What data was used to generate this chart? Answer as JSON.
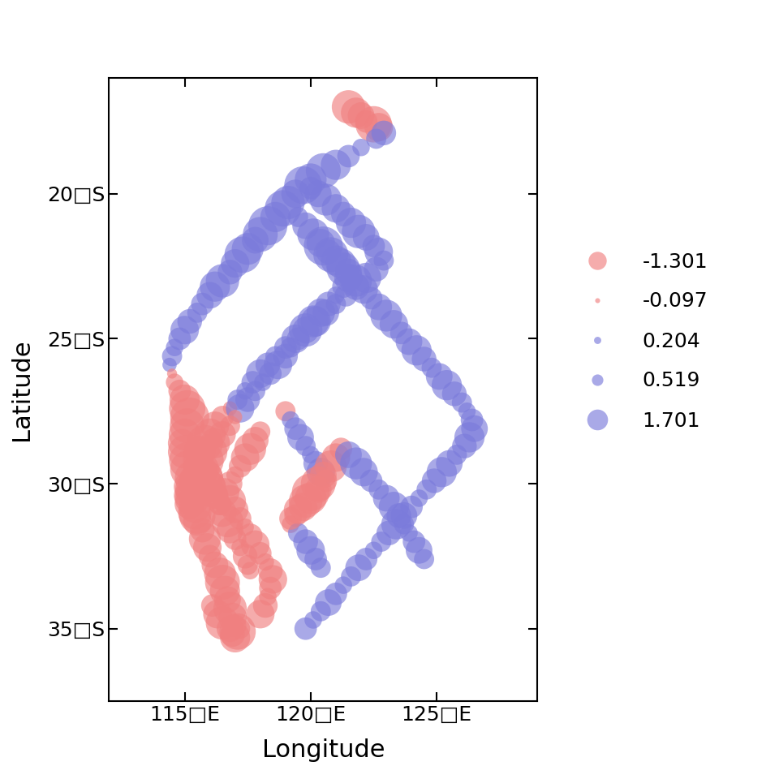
{
  "title": "",
  "xlabel": "Longitude",
  "ylabel": "Latitude",
  "xlim": [
    112.0,
    129.0
  ],
  "ylim": [
    -37.5,
    -16.0
  ],
  "xticks": [
    115,
    120,
    125
  ],
  "yticks": [
    -20,
    -25,
    -30,
    -35
  ],
  "xtick_labels": [
    "115□E",
    "120□E",
    "125□E"
  ],
  "ytick_labels": [
    "20□S",
    "25□S",
    "30□S",
    "35□S"
  ],
  "legend_values": [
    -1.301,
    -0.097,
    0.204,
    0.519,
    1.701
  ],
  "neg_color": "#F08080",
  "pos_color": "#7B7BDB",
  "alpha": 0.65,
  "size_scale": 800,
  "points": [
    [
      121.5,
      -17.0,
      -1.1
    ],
    [
      121.8,
      -17.2,
      -0.9
    ],
    [
      122.0,
      -17.3,
      -0.7
    ],
    [
      122.2,
      -17.5,
      -0.5
    ],
    [
      122.5,
      -17.6,
      -1.3
    ],
    [
      122.7,
      -17.7,
      -0.8
    ],
    [
      122.9,
      -17.9,
      0.6
    ],
    [
      122.6,
      -18.1,
      0.4
    ],
    [
      122.0,
      -18.4,
      0.3
    ],
    [
      121.5,
      -18.7,
      0.5
    ],
    [
      121.0,
      -19.0,
      0.9
    ],
    [
      120.5,
      -19.2,
      1.2
    ],
    [
      120.0,
      -19.5,
      1.0
    ],
    [
      119.7,
      -19.7,
      1.4
    ],
    [
      119.4,
      -20.0,
      0.8
    ],
    [
      119.1,
      -20.3,
      1.1
    ],
    [
      118.9,
      -20.5,
      1.3
    ],
    [
      118.6,
      -20.8,
      0.9
    ],
    [
      118.3,
      -21.1,
      1.5
    ],
    [
      118.0,
      -21.4,
      1.2
    ],
    [
      117.8,
      -21.6,
      0.7
    ],
    [
      117.5,
      -21.9,
      1.0
    ],
    [
      117.3,
      -22.1,
      1.3
    ],
    [
      117.0,
      -22.4,
      0.8
    ],
    [
      116.8,
      -22.7,
      0.6
    ],
    [
      116.5,
      -23.0,
      1.1
    ],
    [
      116.2,
      -23.2,
      0.9
    ],
    [
      116.0,
      -23.5,
      0.7
    ],
    [
      115.7,
      -23.8,
      0.5
    ],
    [
      115.5,
      -24.1,
      0.4
    ],
    [
      115.2,
      -24.4,
      0.6
    ],
    [
      115.0,
      -24.7,
      0.8
    ],
    [
      114.8,
      -25.0,
      0.5
    ],
    [
      114.6,
      -25.3,
      0.3
    ],
    [
      114.5,
      -25.6,
      0.4
    ],
    [
      114.4,
      -25.9,
      0.2
    ],
    [
      114.5,
      -26.2,
      -0.1
    ],
    [
      114.6,
      -26.5,
      -0.3
    ],
    [
      114.8,
      -26.8,
      -0.5
    ],
    [
      115.0,
      -27.1,
      -0.9
    ],
    [
      115.1,
      -27.4,
      -1.3
    ],
    [
      115.2,
      -27.7,
      -1.5
    ],
    [
      115.1,
      -28.0,
      -1.2
    ],
    [
      115.0,
      -28.3,
      -1.0
    ],
    [
      114.9,
      -28.6,
      -0.8
    ],
    [
      115.0,
      -28.9,
      -1.1
    ],
    [
      115.1,
      -29.2,
      -1.3
    ],
    [
      115.2,
      -29.5,
      -1.5
    ],
    [
      115.3,
      -29.8,
      -1.2
    ],
    [
      115.2,
      -30.1,
      -1.0
    ],
    [
      115.1,
      -30.4,
      -0.7
    ],
    [
      115.2,
      -30.7,
      -0.9
    ],
    [
      115.4,
      -31.0,
      -1.1
    ],
    [
      115.5,
      -31.3,
      -0.8
    ],
    [
      115.7,
      -31.6,
      -0.6
    ],
    [
      115.8,
      -31.9,
      -1.0
    ],
    [
      115.9,
      -32.2,
      -0.8
    ],
    [
      116.0,
      -32.5,
      -0.5
    ],
    [
      116.2,
      -32.8,
      -0.7
    ],
    [
      116.4,
      -33.1,
      -1.0
    ],
    [
      116.5,
      -33.4,
      -1.2
    ],
    [
      116.6,
      -33.7,
      -0.9
    ],
    [
      116.7,
      -34.0,
      -0.7
    ],
    [
      116.8,
      -34.3,
      -1.1
    ],
    [
      116.9,
      -34.6,
      -0.8
    ],
    [
      117.0,
      -34.9,
      -0.5
    ],
    [
      117.1,
      -35.1,
      -1.3
    ],
    [
      117.0,
      -35.3,
      -0.9
    ],
    [
      116.8,
      -35.0,
      -0.7
    ],
    [
      116.5,
      -34.8,
      -1.1
    ],
    [
      116.3,
      -34.5,
      -0.8
    ],
    [
      116.1,
      -34.2,
      -0.5
    ],
    [
      116.9,
      -35.2,
      -0.6
    ],
    [
      117.2,
      -35.0,
      -0.4
    ],
    [
      120.0,
      -19.8,
      0.5
    ],
    [
      120.3,
      -20.0,
      0.7
    ],
    [
      120.6,
      -20.2,
      1.0
    ],
    [
      121.0,
      -20.5,
      0.8
    ],
    [
      121.3,
      -20.7,
      0.6
    ],
    [
      121.6,
      -21.0,
      0.9
    ],
    [
      121.9,
      -21.3,
      1.1
    ],
    [
      122.2,
      -21.5,
      0.7
    ],
    [
      122.5,
      -21.8,
      0.5
    ],
    [
      122.7,
      -22.0,
      0.8
    ],
    [
      122.9,
      -22.3,
      0.4
    ],
    [
      122.6,
      -22.6,
      0.6
    ],
    [
      122.2,
      -22.9,
      0.9
    ],
    [
      121.8,
      -23.2,
      0.7
    ],
    [
      121.4,
      -23.5,
      0.5
    ],
    [
      121.0,
      -23.8,
      0.4
    ],
    [
      120.6,
      -24.1,
      0.7
    ],
    [
      120.2,
      -24.4,
      0.9
    ],
    [
      119.8,
      -24.7,
      1.1
    ],
    [
      119.4,
      -25.0,
      0.8
    ],
    [
      119.0,
      -25.3,
      0.5
    ],
    [
      118.6,
      -25.6,
      0.4
    ],
    [
      118.3,
      -25.9,
      0.6
    ],
    [
      118.0,
      -26.2,
      0.8
    ],
    [
      117.7,
      -26.5,
      0.5
    ],
    [
      117.4,
      -26.8,
      0.3
    ],
    [
      117.1,
      -27.1,
      0.4
    ],
    [
      116.8,
      -27.4,
      -0.2
    ],
    [
      116.5,
      -27.7,
      -0.5
    ],
    [
      116.2,
      -28.0,
      -0.8
    ],
    [
      116.0,
      -28.3,
      -1.0
    ],
    [
      115.8,
      -28.6,
      -1.3
    ],
    [
      115.6,
      -28.9,
      -1.0
    ],
    [
      115.5,
      -29.2,
      -0.8
    ],
    [
      115.6,
      -29.5,
      -1.1
    ],
    [
      115.8,
      -29.8,
      -1.3
    ],
    [
      116.0,
      -30.1,
      -1.0
    ],
    [
      116.2,
      -30.4,
      -0.7
    ],
    [
      116.4,
      -30.7,
      -0.5
    ],
    [
      116.5,
      -31.0,
      -0.8
    ],
    [
      116.7,
      -31.3,
      -1.0
    ],
    [
      116.8,
      -31.6,
      -0.7
    ],
    [
      117.0,
      -31.9,
      -0.5
    ],
    [
      117.2,
      -32.2,
      -0.3
    ],
    [
      117.4,
      -32.5,
      -0.6
    ],
    [
      117.5,
      -32.8,
      -0.4
    ],
    [
      117.6,
      -33.0,
      -0.3
    ],
    [
      119.5,
      -20.8,
      0.4
    ],
    [
      119.8,
      -21.1,
      0.7
    ],
    [
      120.1,
      -21.4,
      1.0
    ],
    [
      120.4,
      -21.7,
      0.8
    ],
    [
      120.7,
      -22.0,
      0.6
    ],
    [
      121.0,
      -22.3,
      0.9
    ],
    [
      121.3,
      -22.6,
      1.1
    ],
    [
      121.5,
      -22.9,
      0.8
    ],
    [
      121.3,
      -23.2,
      0.5
    ],
    [
      121.0,
      -23.5,
      0.3
    ],
    [
      120.7,
      -23.8,
      0.6
    ],
    [
      120.4,
      -24.1,
      0.8
    ],
    [
      120.1,
      -24.4,
      1.0
    ],
    [
      119.8,
      -24.7,
      0.7
    ],
    [
      119.5,
      -25.0,
      0.5
    ],
    [
      119.2,
      -25.3,
      0.4
    ],
    [
      119.0,
      -25.6,
      0.6
    ],
    [
      118.7,
      -25.9,
      0.8
    ],
    [
      118.4,
      -26.2,
      0.5
    ],
    [
      118.1,
      -26.5,
      0.3
    ],
    [
      117.8,
      -26.8,
      0.4
    ],
    [
      117.5,
      -27.1,
      0.6
    ],
    [
      117.2,
      -27.4,
      0.8
    ],
    [
      117.0,
      -27.7,
      -0.2
    ],
    [
      116.8,
      -28.0,
      -0.4
    ],
    [
      116.5,
      -28.3,
      -0.7
    ],
    [
      116.2,
      -28.6,
      -0.9
    ],
    [
      116.0,
      -28.9,
      -1.2
    ],
    [
      115.8,
      -29.2,
      -1.4
    ],
    [
      115.7,
      -29.5,
      -1.1
    ],
    [
      115.8,
      -29.8,
      -1.3
    ],
    [
      116.0,
      -30.1,
      -1.0
    ],
    [
      116.2,
      -30.4,
      -0.7
    ],
    [
      116.4,
      -30.7,
      -0.5
    ],
    [
      120.5,
      -21.8,
      1.5
    ],
    [
      120.8,
      -22.1,
      1.2
    ],
    [
      121.2,
      -22.4,
      0.9
    ],
    [
      121.5,
      -22.7,
      0.7
    ],
    [
      121.8,
      -23.0,
      1.0
    ],
    [
      122.1,
      -23.3,
      0.8
    ],
    [
      122.4,
      -23.6,
      0.5
    ],
    [
      122.7,
      -23.9,
      0.7
    ],
    [
      123.0,
      -24.2,
      1.0
    ],
    [
      123.3,
      -24.5,
      0.8
    ],
    [
      123.6,
      -24.8,
      0.5
    ],
    [
      123.9,
      -25.1,
      0.7
    ],
    [
      124.2,
      -25.4,
      0.9
    ],
    [
      124.5,
      -25.7,
      0.6
    ],
    [
      124.8,
      -26.0,
      0.4
    ],
    [
      125.1,
      -26.3,
      0.7
    ],
    [
      125.4,
      -26.6,
      0.9
    ],
    [
      125.7,
      -26.9,
      0.6
    ],
    [
      126.0,
      -27.2,
      0.4
    ],
    [
      126.2,
      -27.5,
      0.3
    ],
    [
      126.4,
      -27.8,
      0.5
    ],
    [
      126.5,
      -28.1,
      0.7
    ],
    [
      126.3,
      -28.4,
      0.9
    ],
    [
      126.1,
      -28.7,
      0.6
    ],
    [
      125.8,
      -29.0,
      0.4
    ],
    [
      125.5,
      -29.3,
      0.7
    ],
    [
      125.2,
      -29.6,
      0.9
    ],
    [
      124.9,
      -29.9,
      0.6
    ],
    [
      124.6,
      -30.2,
      0.4
    ],
    [
      124.3,
      -30.5,
      0.3
    ],
    [
      124.0,
      -30.8,
      0.5
    ],
    [
      123.7,
      -31.1,
      0.7
    ],
    [
      123.4,
      -31.4,
      0.9
    ],
    [
      123.1,
      -31.7,
      0.6
    ],
    [
      122.8,
      -32.0,
      0.4
    ],
    [
      122.5,
      -32.3,
      0.3
    ],
    [
      122.2,
      -32.6,
      0.5
    ],
    [
      121.9,
      -32.9,
      0.7
    ],
    [
      121.6,
      -33.2,
      0.4
    ],
    [
      121.3,
      -33.5,
      0.3
    ],
    [
      121.0,
      -33.8,
      0.5
    ],
    [
      120.7,
      -34.1,
      0.7
    ],
    [
      120.4,
      -34.4,
      0.4
    ],
    [
      120.1,
      -34.7,
      0.3
    ],
    [
      119.8,
      -35.0,
      0.5
    ],
    [
      118.0,
      -28.2,
      -0.4
    ],
    [
      117.8,
      -28.5,
      -0.7
    ],
    [
      117.6,
      -28.8,
      -1.0
    ],
    [
      117.4,
      -29.1,
      -0.8
    ],
    [
      117.2,
      -29.4,
      -0.5
    ],
    [
      117.0,
      -29.7,
      -0.3
    ],
    [
      116.8,
      -30.0,
      -0.6
    ],
    [
      116.6,
      -30.3,
      -0.8
    ],
    [
      116.8,
      -30.6,
      -1.0
    ],
    [
      117.0,
      -30.9,
      -0.7
    ],
    [
      117.2,
      -31.2,
      -0.5
    ],
    [
      117.4,
      -31.5,
      -0.3
    ],
    [
      117.6,
      -31.8,
      -0.6
    ],
    [
      117.8,
      -32.1,
      -0.8
    ],
    [
      118.0,
      -32.4,
      -0.5
    ],
    [
      118.2,
      -32.7,
      -0.3
    ],
    [
      118.4,
      -33.0,
      -0.6
    ],
    [
      118.5,
      -33.3,
      -0.8
    ],
    [
      118.4,
      -33.6,
      -0.5
    ],
    [
      118.3,
      -33.9,
      -0.3
    ],
    [
      118.2,
      -34.2,
      -0.6
    ],
    [
      118.0,
      -34.5,
      -0.8
    ],
    [
      119.0,
      -27.5,
      -0.4
    ],
    [
      119.2,
      -27.8,
      0.3
    ],
    [
      119.4,
      -28.1,
      0.5
    ],
    [
      119.6,
      -28.4,
      0.7
    ],
    [
      119.8,
      -28.7,
      0.4
    ],
    [
      120.0,
      -29.0,
      0.3
    ],
    [
      120.2,
      -29.3,
      0.6
    ],
    [
      120.4,
      -29.6,
      0.8
    ],
    [
      120.6,
      -29.9,
      -0.5
    ],
    [
      120.3,
      -30.2,
      -0.7
    ],
    [
      120.0,
      -30.5,
      -1.0
    ],
    [
      119.7,
      -30.8,
      -0.8
    ],
    [
      119.4,
      -31.1,
      -0.5
    ],
    [
      119.2,
      -31.4,
      -0.3
    ],
    [
      119.5,
      -31.7,
      0.4
    ],
    [
      119.8,
      -32.0,
      0.6
    ],
    [
      120.0,
      -32.3,
      0.8
    ],
    [
      120.2,
      -32.6,
      0.5
    ],
    [
      120.4,
      -32.9,
      0.4
    ],
    [
      121.2,
      -28.8,
      -0.5
    ],
    [
      121.0,
      -29.1,
      -0.8
    ],
    [
      120.8,
      -29.4,
      -1.0
    ],
    [
      120.5,
      -29.7,
      -0.7
    ],
    [
      120.3,
      -30.0,
      -1.2
    ],
    [
      120.0,
      -30.3,
      -1.4
    ],
    [
      119.8,
      -30.6,
      -1.1
    ],
    [
      119.5,
      -30.9,
      -0.8
    ],
    [
      119.2,
      -31.2,
      -0.5
    ],
    [
      121.5,
      -29.0,
      0.7
    ],
    [
      121.8,
      -29.3,
      1.0
    ],
    [
      122.1,
      -29.6,
      0.8
    ],
    [
      122.4,
      -29.9,
      0.5
    ],
    [
      122.7,
      -30.2,
      0.4
    ],
    [
      123.0,
      -30.5,
      0.7
    ],
    [
      123.3,
      -30.8,
      0.9
    ],
    [
      123.5,
      -31.1,
      0.6
    ],
    [
      123.7,
      -31.4,
      0.4
    ],
    [
      123.9,
      -31.7,
      0.3
    ],
    [
      124.1,
      -32.0,
      0.5
    ],
    [
      124.3,
      -32.3,
      0.7
    ],
    [
      124.5,
      -32.6,
      0.4
    ],
    [
      115.5,
      -29.9,
      -1.3
    ],
    [
      115.4,
      -30.2,
      -1.5
    ],
    [
      115.3,
      -30.5,
      -1.2
    ],
    [
      115.4,
      -30.8,
      -1.0
    ],
    [
      115.5,
      -31.1,
      -1.3
    ]
  ]
}
